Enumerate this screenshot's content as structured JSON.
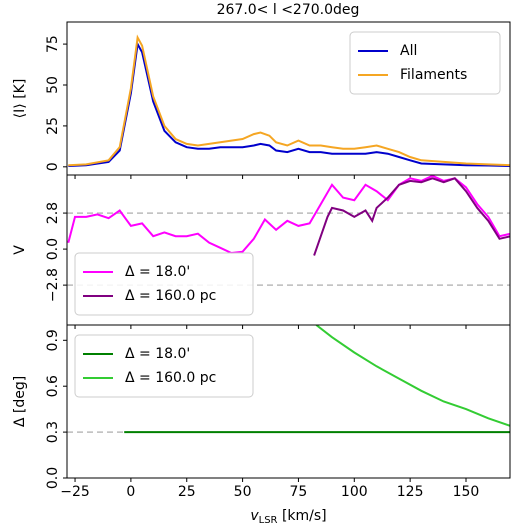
{
  "chart_data": [
    {
      "type": "line",
      "title": "267.0< l <270.0deg",
      "ylabel": "⟨I⟩ [K]",
      "legend": "upper right",
      "ylim": [
        -5,
        88.5
      ],
      "yticks": [
        0,
        25,
        50,
        75
      ],
      "xlim": [
        -28.6,
        169.7
      ],
      "x": [
        -28,
        -20,
        -10,
        -5,
        0,
        3,
        5,
        10,
        15,
        20,
        25,
        30,
        35,
        40,
        45,
        50,
        55,
        58,
        62,
        65,
        70,
        75,
        80,
        85,
        90,
        95,
        100,
        105,
        110,
        115,
        120,
        125,
        130,
        140,
        150,
        160,
        170
      ],
      "series": [
        {
          "name": "All",
          "color": "#0000cc",
          "values": [
            0.5,
            1,
            3,
            10,
            45,
            75,
            70,
            40,
            22,
            15,
            12,
            11,
            11,
            12,
            12,
            12,
            13,
            14,
            13,
            10,
            9,
            11,
            9,
            9,
            8,
            8,
            8,
            8,
            9,
            8,
            6,
            4,
            2,
            1.5,
            1,
            0.8,
            0.5
          ]
        },
        {
          "name": "Filaments",
          "color": "#f5a623",
          "values": [
            1,
            1.5,
            4,
            12,
            48,
            79,
            74,
            43,
            25,
            17,
            14,
            13,
            14,
            15,
            16,
            17,
            20,
            21,
            19,
            15,
            13,
            16,
            13,
            13,
            12,
            11,
            11,
            12,
            13,
            11,
            9,
            6,
            4,
            3,
            2,
            1.5,
            1
          ]
        }
      ]
    },
    {
      "type": "line",
      "ylabel": "V",
      "legend": "lower left",
      "xlim": [
        -28.6,
        169.7
      ],
      "ylim": [
        -5.9,
        5.76
      ],
      "yticks": [
        {
          "value": -2.8,
          "label": "−2.8"
        },
        {
          "value": 0,
          "label": "0.0"
        },
        2.8
      ],
      "hlines": [
        -2.8,
        2.8
      ],
      "series": [
        {
          "name": "Δ = 18.0'",
          "color": "#ff00ff",
          "x": [
            -28,
            -25,
            -20,
            -15,
            -10,
            -5,
            0,
            5,
            10,
            15,
            20,
            25,
            30,
            35,
            40,
            45,
            50,
            55,
            60,
            65,
            70,
            75,
            80,
            85,
            90,
            95,
            100,
            105,
            110,
            115,
            120,
            125,
            130,
            135,
            140,
            145,
            150,
            155,
            160,
            165,
            170
          ],
          "values": [
            0.5,
            2.5,
            2.5,
            2.7,
            2.4,
            3.0,
            1.8,
            2.0,
            1.0,
            1.3,
            1.0,
            1.0,
            1.2,
            0.5,
            0.1,
            -0.3,
            -0.2,
            0.8,
            2.3,
            1.5,
            2.2,
            1.8,
            2.0,
            3.5,
            5.0,
            4.0,
            3.8,
            5.0,
            4.5,
            3.8,
            5.0,
            5.5,
            5.3,
            5.7,
            5.3,
            5.5,
            4.8,
            3.5,
            2.5,
            1.0,
            1.2
          ]
        },
        {
          "name": "Δ = 160.0 pc",
          "color": "#800080",
          "x": [
            82,
            85,
            88,
            90,
            95,
            100,
            105,
            108,
            110,
            115,
            120,
            125,
            130,
            135,
            140,
            145,
            150,
            155,
            160,
            165,
            170
          ],
          "values": [
            -0.5,
            1.0,
            2.5,
            3.2,
            3.0,
            2.5,
            3.0,
            2.2,
            3.2,
            4.0,
            5.0,
            5.3,
            5.2,
            5.5,
            5.2,
            5.5,
            4.5,
            3.2,
            2.2,
            0.8,
            1.0
          ]
        }
      ]
    },
    {
      "type": "line",
      "ylabel": "Δ [deg]",
      "xlabel": [
        "v",
        "LSR",
        " [km/s]"
      ],
      "legend": "upper left",
      "xlim": [
        -28.6,
        169.7
      ],
      "xticks": [
        {
          "value": -25,
          "label": "−25"
        },
        0,
        25,
        50,
        75,
        100,
        125,
        150
      ],
      "ylim": [
        0,
        1.0
      ],
      "yticks": [
        {
          "value": 0,
          "label": "0.0"
        },
        0.3,
        0.6,
        0.9
      ],
      "hlines": [
        0.3
      ],
      "series": [
        {
          "name": "Δ = 18.0'",
          "color": "#008000",
          "x": [
            -3,
            170
          ],
          "values": [
            0.3,
            0.3
          ]
        },
        {
          "name": "Δ = 160.0 pc",
          "color": "#33cc33",
          "x": [
            83,
            90,
            100,
            110,
            120,
            130,
            140,
            150,
            160,
            170
          ],
          "values": [
            1.0,
            0.92,
            0.82,
            0.73,
            0.65,
            0.57,
            0.5,
            0.45,
            0.39,
            0.34
          ]
        }
      ]
    }
  ]
}
